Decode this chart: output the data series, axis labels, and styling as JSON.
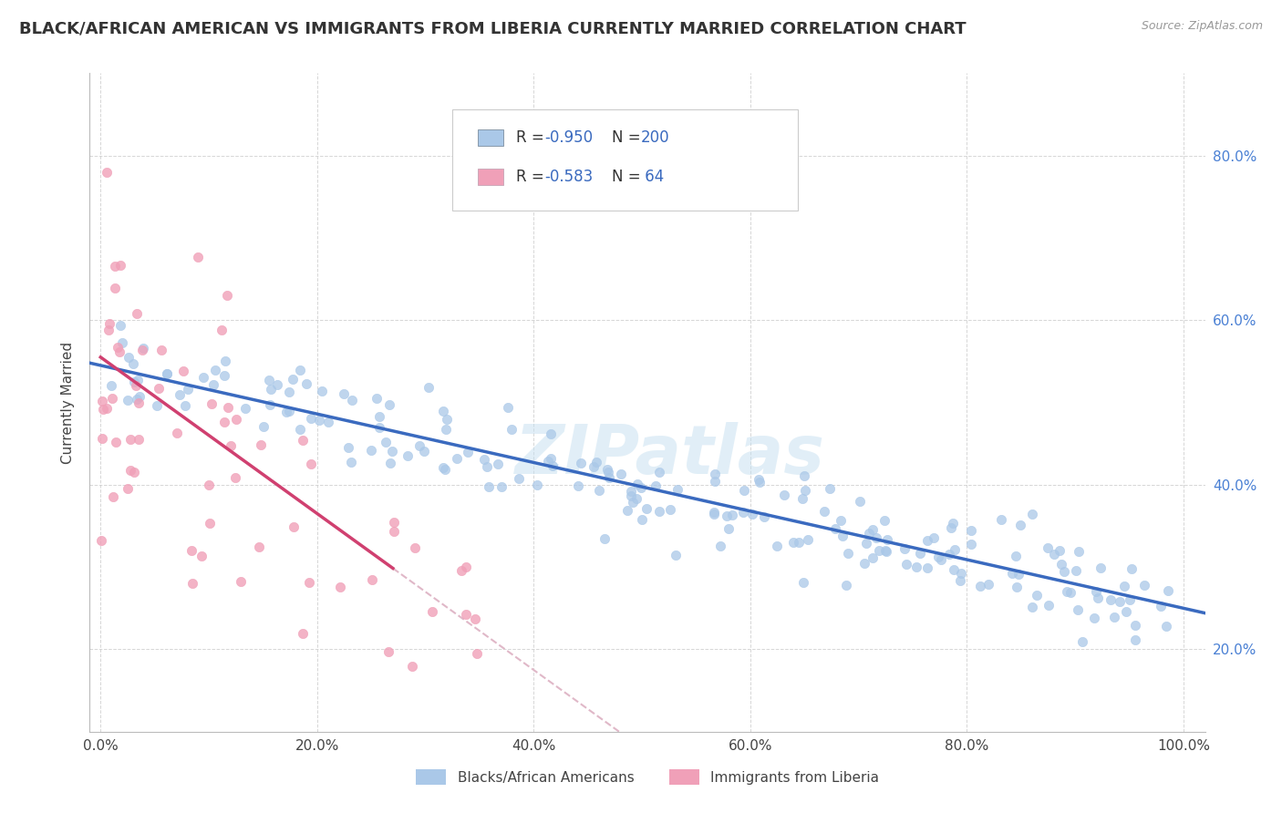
{
  "title": "BLACK/AFRICAN AMERICAN VS IMMIGRANTS FROM LIBERIA CURRENTLY MARRIED CORRELATION CHART",
  "source_text": "Source: ZipAtlas.com",
  "ylabel": "Currently Married",
  "right_yticks": [
    "20.0%",
    "40.0%",
    "60.0%",
    "80.0%"
  ],
  "right_ytick_vals": [
    0.2,
    0.4,
    0.6,
    0.8
  ],
  "xticks": [
    "0.0%",
    "20.0%",
    "40.0%",
    "60.0%",
    "80.0%",
    "100.0%"
  ],
  "xtick_vals": [
    0.0,
    0.2,
    0.4,
    0.6,
    0.8,
    1.0
  ],
  "xlim": [
    -0.01,
    1.02
  ],
  "ylim": [
    0.1,
    0.9
  ],
  "blue_R": -0.95,
  "blue_N": 200,
  "pink_R": -0.583,
  "pink_N": 64,
  "blue_scatter_color": "#aac8e8",
  "blue_line_color": "#3a6abf",
  "pink_scatter_color": "#f0a0b8",
  "pink_line_color": "#d04070",
  "pink_dash_color": "#e0b8c8",
  "watermark": "ZIPatlas",
  "legend_label_blue": "Blacks/African Americans",
  "legend_label_pink": "Immigrants from Liberia",
  "title_fontsize": 13,
  "background_color": "#ffffff",
  "grid_color": "#cccccc",
  "blue_intercept": 0.545,
  "blue_slope": -0.295,
  "pink_intercept": 0.555,
  "pink_slope": -0.95
}
